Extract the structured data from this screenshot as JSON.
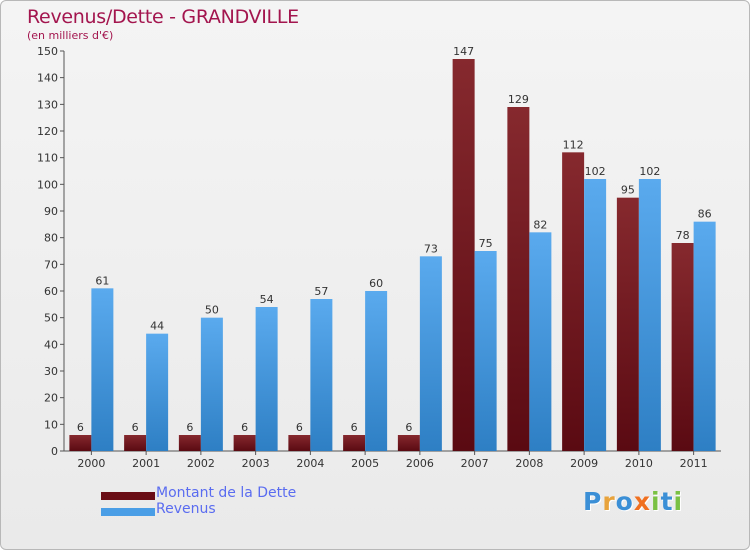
{
  "title": "Revenus/Dette - GRANDVILLE",
  "subtitle": "(en milliers d'€)",
  "logo": {
    "text": "Proxiti",
    "colors": [
      "#3b8fd6",
      "#e8a33c",
      "#3b8fd6",
      "#f07020",
      "#7ac143",
      "#3b8fd6",
      "#7ac143"
    ]
  },
  "colors": {
    "dette_top": "#86292e",
    "dette_bottom": "#5a0a12",
    "revenus_top": "#5aaaee",
    "revenus_bottom": "#2e7fc4",
    "title": "#a3154e",
    "legend_text": "#5a6cf0"
  },
  "chart_data": {
    "type": "bar",
    "title": "Revenus/Dette - GRANDVILLE",
    "ylabel": "(en milliers d'€)",
    "xlabel": "",
    "ylim": [
      0,
      150
    ],
    "yticks": [
      0,
      10,
      20,
      30,
      40,
      50,
      60,
      70,
      80,
      90,
      100,
      110,
      120,
      130,
      140,
      150
    ],
    "grid": false,
    "legend_position": "bottom-left",
    "categories": [
      "2000",
      "2001",
      "2002",
      "2003",
      "2004",
      "2005",
      "2006",
      "2007",
      "2008",
      "2009",
      "2010",
      "2011"
    ],
    "series": [
      {
        "name": "Montant de la Dette",
        "values": [
          6,
          6,
          6,
          6,
          6,
          6,
          6,
          147,
          129,
          112,
          95,
          78
        ]
      },
      {
        "name": "Revenus",
        "values": [
          61,
          44,
          50,
          54,
          57,
          60,
          73,
          75,
          82,
          102,
          102,
          86
        ]
      }
    ]
  }
}
